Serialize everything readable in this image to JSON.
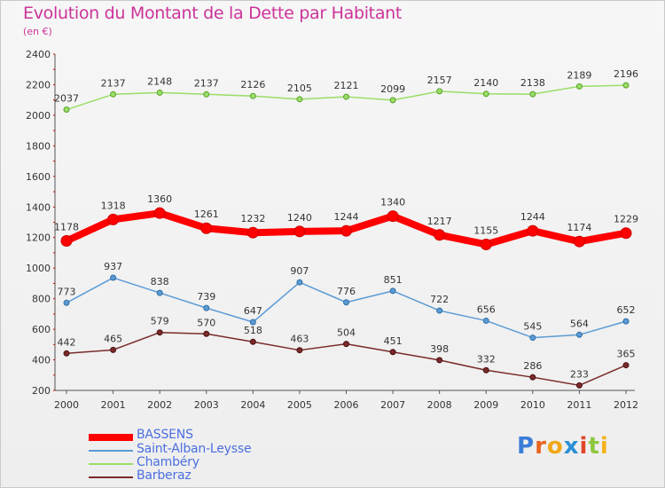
{
  "header": {
    "title": "Evolution du Montant de la Dette par Habitant",
    "subtitle": "(en €)"
  },
  "logo": {
    "text": "Proxiti",
    "letter_colors": [
      "#3b7dd8",
      "#e8641e",
      "#f0a818",
      "#2c8fd6",
      "#e0462b",
      "#8ec63f",
      "#f5b31b"
    ]
  },
  "colors": {
    "title": "#cc3399",
    "legend_text": "#4b6fe0"
  },
  "chart_data": {
    "type": "line",
    "title": "Evolution du Montant de la Dette par Habitant",
    "ylabel": "(en €)",
    "ylim": [
      200,
      2400
    ],
    "yticks": [
      200,
      400,
      600,
      800,
      1000,
      1200,
      1400,
      1600,
      1800,
      2000,
      2200,
      2400
    ],
    "grid": false,
    "legend_position": "bottom-left",
    "x": [
      "2000",
      "2001",
      "2002",
      "2003",
      "2004",
      "2005",
      "2006",
      "2007",
      "2008",
      "2009",
      "2010",
      "2011",
      "2012"
    ],
    "series": [
      {
        "name": "BASSENS",
        "color": "#ff0000",
        "values": [
          1178,
          1318,
          1360,
          1261,
          1232,
          1240,
          1244,
          1340,
          1217,
          1155,
          1244,
          1174,
          1229
        ]
      },
      {
        "name": "Saint-Alban-Leysse",
        "color": "#5b9bd5",
        "values": [
          773,
          937,
          838,
          739,
          647,
          907,
          776,
          851,
          722,
          656,
          545,
          564,
          652
        ]
      },
      {
        "name": "Chambéry",
        "color": "#99dd66",
        "values": [
          2037,
          2137,
          2148,
          2137,
          2126,
          2105,
          2121,
          2099,
          2157,
          2140,
          2138,
          2189,
          2196
        ]
      },
      {
        "name": "Barberaz",
        "color": "#7a2a2a",
        "values": [
          442,
          465,
          579,
          570,
          518,
          463,
          504,
          451,
          398,
          332,
          286,
          233,
          365
        ]
      }
    ]
  }
}
